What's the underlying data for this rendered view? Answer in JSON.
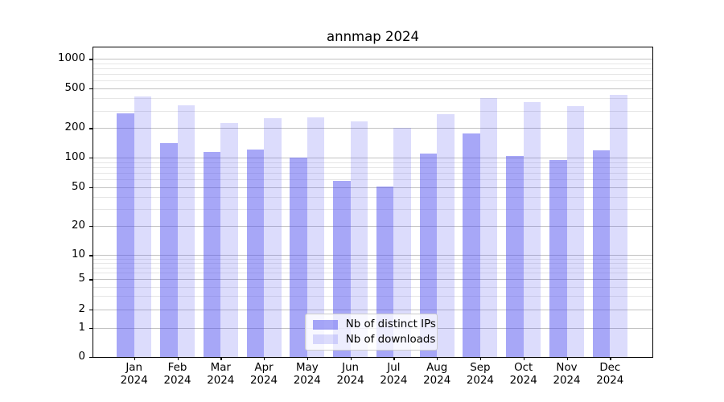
{
  "title": "annmap 2024",
  "chart_data": {
    "type": "bar",
    "title": "annmap 2024",
    "categories": [
      "Jan",
      "Feb",
      "Mar",
      "Apr",
      "May",
      "Jun",
      "Jul",
      "Aug",
      "Sep",
      "Oct",
      "Nov",
      "Dec"
    ],
    "category_year": "2024",
    "series": [
      {
        "name": "Nb of distinct IPs",
        "color": "rgba(80,80,240,0.5)",
        "values": [
          280,
          140,
          114,
          120,
          100,
          58,
          51,
          110,
          175,
          104,
          95,
          118
        ]
      },
      {
        "name": "Nb of downloads",
        "color": "rgba(80,80,240,0.2)",
        "values": [
          415,
          340,
          227,
          250,
          255,
          233,
          200,
          277,
          403,
          365,
          332,
          435
        ]
      }
    ],
    "xlabel": "",
    "ylabel": "",
    "yscale": "symlog",
    "yticks": [
      0,
      1,
      2,
      5,
      10,
      20,
      50,
      100,
      200,
      500,
      1000
    ],
    "yminor_ticks": [
      3,
      4,
      6,
      7,
      8,
      9,
      30,
      40,
      60,
      70,
      80,
      90,
      300,
      400,
      600,
      700,
      800,
      900
    ],
    "ylim": [
      0,
      1320
    ],
    "grid": true,
    "legend_position": "lower center",
    "colors": {
      "bar_dark": "#a9a9f4",
      "bar_light": "#dcdcfa",
      "grid_major": "#c2c2c2",
      "grid_minor": "#e6e6e6",
      "axis": "#000000"
    }
  }
}
